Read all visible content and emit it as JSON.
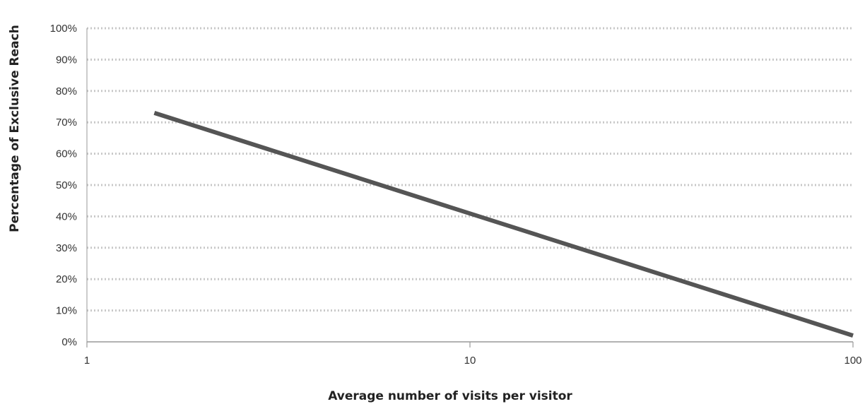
{
  "chart_data": {
    "type": "line",
    "title": "",
    "xlabel": "Average number of visits per visitor",
    "ylabel": "Percentage of Exclusive Reach",
    "x_scale": "log",
    "xlim": [
      1,
      100
    ],
    "ylim": [
      0,
      100
    ],
    "x_ticks": [
      "1",
      "10",
      "100"
    ],
    "y_ticks": [
      "0%",
      "10%",
      "20%",
      "30%",
      "40%",
      "50%",
      "60%",
      "70%",
      "80%",
      "90%",
      "100%"
    ],
    "grid": "horizontal-dotted",
    "legend": "none",
    "series": [
      {
        "x": [
          1.5,
          100
        ],
        "y": [
          73,
          2
        ]
      }
    ],
    "colors": {
      "line": "#555555",
      "grid": "#c8c8c8",
      "axis": "#999999"
    }
  }
}
